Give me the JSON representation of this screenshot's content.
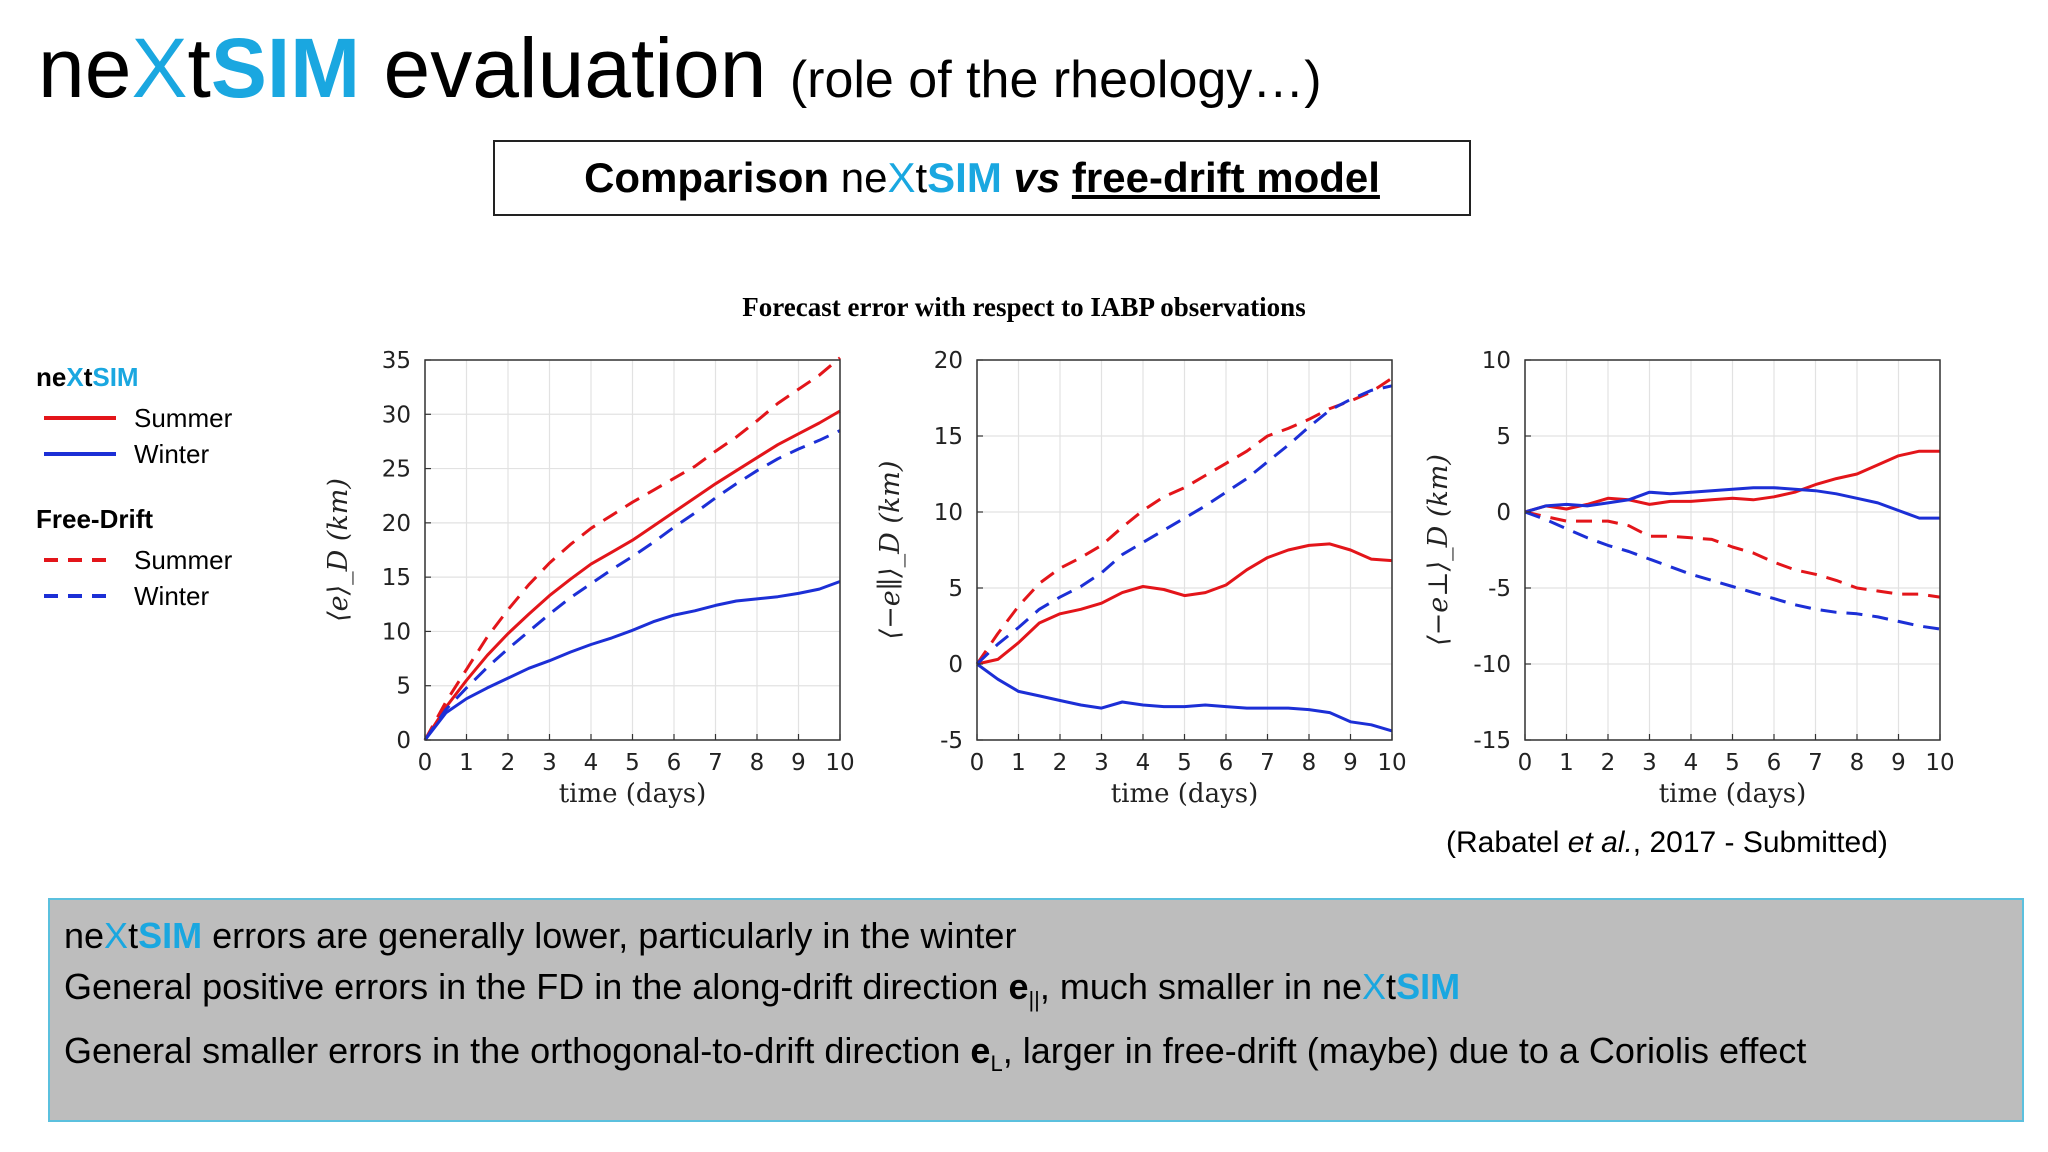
{
  "header": {
    "title_ne": "ne",
    "title_x": "X",
    "title_t": "t",
    "title_sim": "SIM",
    "title_rest": " evaluation",
    "subtitle": "(role of the rheology…)"
  },
  "comparison": {
    "prefix": "Comparison ",
    "ne": "ne",
    "x": "X",
    "t": "t",
    "sim": "SIM",
    "vs": "vs",
    "model": "free-drift model"
  },
  "figure_title": "Forecast error with respect to IABP observations",
  "legend": {
    "group1_ne": "ne",
    "group1_x": "X",
    "group1_t": "t",
    "group1_sim": "SIM",
    "group1_summer": "Summer",
    "group1_winter": "Winter",
    "group2_title": "Free-Drift",
    "group2_summer": "Summer",
    "group2_winter": "Winter"
  },
  "colors": {
    "summer": "#e3151a",
    "winter": "#1c2fd6",
    "accent": "#1aa7e0",
    "notes_bg": "#bdbdbd",
    "notes_border": "#5bc0de"
  },
  "citation": {
    "before": "(Rabatel ",
    "italic": "et al.",
    "after": ", 2017 - Submitted)"
  },
  "notes": {
    "line1_ne": "ne",
    "line1_x": "X",
    "line1_t": "t",
    "line1_sim": "SIM",
    "line1_rest": " errors are generally lower, particularly in the winter",
    "line2_text": "General positive errors in the FD in the along-drift direction ",
    "line2_bold": "e",
    "line2_sub": "||",
    "line2_rest": ", much smaller in ne",
    "line2_x": "X",
    "line2_t": "t",
    "line2_sim": "SIM",
    "line3_text": "General smaller errors in the orthogonal-to-drift direction ",
    "line3_bold": "e",
    "line3_sub": "L",
    "line3_rest": ", larger in free-drift (maybe) due to a Coriolis effect"
  },
  "chart_data": [
    {
      "type": "line",
      "title": "",
      "xlabel": "time (days)",
      "ylabel": "⟨e⟩_D (km)",
      "xlim": [
        0,
        10
      ],
      "ylim": [
        0,
        35
      ],
      "xticks": [
        0,
        1,
        2,
        3,
        4,
        5,
        6,
        7,
        8,
        9,
        10
      ],
      "yticks": [
        0,
        5,
        10,
        15,
        20,
        25,
        30,
        35
      ],
      "grid": true,
      "x": [
        0,
        0.5,
        1,
        1.5,
        2,
        2.5,
        3,
        3.5,
        4,
        4.5,
        5,
        5.5,
        6,
        6.5,
        7,
        7.5,
        8,
        8.5,
        9,
        9.5,
        10
      ],
      "series": [
        {
          "name": "neXtSIM Summer",
          "style": "solid",
          "color_key": "summer",
          "values": [
            0,
            3.0,
            5.5,
            7.8,
            9.8,
            11.6,
            13.3,
            14.8,
            16.2,
            17.3,
            18.4,
            19.7,
            21.0,
            22.3,
            23.6,
            24.8,
            26.0,
            27.2,
            28.2,
            29.2,
            30.3
          ]
        },
        {
          "name": "neXtSIM Winter",
          "style": "solid",
          "color_key": "winter",
          "values": [
            0,
            2.5,
            3.8,
            4.8,
            5.7,
            6.6,
            7.3,
            8.1,
            8.8,
            9.4,
            10.1,
            10.9,
            11.5,
            11.9,
            12.4,
            12.8,
            13.0,
            13.2,
            13.5,
            13.9,
            14.6
          ]
        },
        {
          "name": "Free-Drift Summer",
          "style": "dashed",
          "color_key": "summer",
          "values": [
            0,
            3.5,
            6.5,
            9.5,
            12.0,
            14.3,
            16.3,
            18.0,
            19.5,
            20.7,
            21.9,
            23.0,
            24.1,
            25.2,
            26.6,
            27.9,
            29.4,
            31.0,
            32.3,
            33.6,
            35.2
          ]
        },
        {
          "name": "Free-Drift Winter",
          "style": "dashed",
          "color_key": "winter",
          "values": [
            0,
            2.8,
            4.8,
            6.7,
            8.4,
            10.0,
            11.6,
            13.1,
            14.4,
            15.7,
            16.9,
            18.2,
            19.6,
            20.9,
            22.3,
            23.6,
            24.8,
            25.9,
            26.8,
            27.6,
            28.5
          ]
        }
      ]
    },
    {
      "type": "line",
      "title": "",
      "xlabel": "time (days)",
      "ylabel": "⟨−e∥⟩_D (km)",
      "xlim": [
        0,
        10
      ],
      "ylim": [
        -5,
        20
      ],
      "xticks": [
        0,
        1,
        2,
        3,
        4,
        5,
        6,
        7,
        8,
        9,
        10
      ],
      "yticks": [
        -5,
        0,
        5,
        10,
        15,
        20
      ],
      "grid": true,
      "x": [
        0,
        0.5,
        1,
        1.5,
        2,
        2.5,
        3,
        3.5,
        4,
        4.5,
        5,
        5.5,
        6,
        6.5,
        7,
        7.5,
        8,
        8.5,
        9,
        9.5,
        10
      ],
      "series": [
        {
          "name": "neXtSIM Summer",
          "style": "solid",
          "color_key": "summer",
          "values": [
            0,
            0.3,
            1.4,
            2.7,
            3.3,
            3.6,
            4.0,
            4.7,
            5.1,
            4.9,
            4.5,
            4.7,
            5.2,
            6.2,
            7.0,
            7.5,
            7.8,
            7.9,
            7.5,
            6.9,
            6.8
          ]
        },
        {
          "name": "neXtSIM Winter",
          "style": "solid",
          "color_key": "winter",
          "values": [
            0,
            -1.0,
            -1.8,
            -2.1,
            -2.4,
            -2.7,
            -2.9,
            -2.5,
            -2.7,
            -2.8,
            -2.8,
            -2.7,
            -2.8,
            -2.9,
            -2.9,
            -2.9,
            -3.0,
            -3.2,
            -3.8,
            -4.0,
            -4.4
          ]
        },
        {
          "name": "Free-Drift Summer",
          "style": "dashed",
          "color_key": "summer",
          "values": [
            0,
            2.0,
            3.8,
            5.3,
            6.3,
            7.0,
            7.8,
            9.0,
            10.1,
            11.0,
            11.6,
            12.4,
            13.2,
            14.0,
            15.0,
            15.5,
            16.1,
            16.8,
            17.3,
            17.9,
            18.8
          ]
        },
        {
          "name": "Free-Drift Winter",
          "style": "dashed",
          "color_key": "winter",
          "values": [
            0,
            1.3,
            2.4,
            3.6,
            4.4,
            5.1,
            6.0,
            7.2,
            8.0,
            8.8,
            9.6,
            10.4,
            11.3,
            12.2,
            13.3,
            14.4,
            15.6,
            16.7,
            17.4,
            18.0,
            18.3
          ]
        }
      ]
    },
    {
      "type": "line",
      "title": "",
      "xlabel": "time (days)",
      "ylabel": "⟨−e⊥⟩_D (km)",
      "xlim": [
        0,
        10
      ],
      "ylim": [
        -15,
        10
      ],
      "xticks": [
        0,
        1,
        2,
        3,
        4,
        5,
        6,
        7,
        8,
        9,
        10
      ],
      "yticks": [
        -15,
        -10,
        -5,
        0,
        5,
        10
      ],
      "grid": true,
      "x": [
        0,
        0.5,
        1,
        1.5,
        2,
        2.5,
        3,
        3.5,
        4,
        4.5,
        5,
        5.5,
        6,
        6.5,
        7,
        7.5,
        8,
        8.5,
        9,
        9.5,
        10
      ],
      "series": [
        {
          "name": "neXtSIM Summer",
          "style": "solid",
          "color_key": "summer",
          "values": [
            0,
            0.4,
            0.2,
            0.5,
            0.9,
            0.8,
            0.5,
            0.7,
            0.7,
            0.8,
            0.9,
            0.8,
            1.0,
            1.3,
            1.8,
            2.2,
            2.5,
            3.1,
            3.7,
            4.0,
            4.0
          ]
        },
        {
          "name": "neXtSIM Winter",
          "style": "solid",
          "color_key": "winter",
          "values": [
            0,
            0.4,
            0.5,
            0.4,
            0.6,
            0.8,
            1.3,
            1.2,
            1.3,
            1.4,
            1.5,
            1.6,
            1.6,
            1.5,
            1.4,
            1.2,
            0.9,
            0.6,
            0.1,
            -0.4,
            -0.4
          ]
        },
        {
          "name": "Free-Drift Summer",
          "style": "dashed",
          "color_key": "summer",
          "values": [
            0,
            -0.3,
            -0.6,
            -0.6,
            -0.6,
            -0.9,
            -1.6,
            -1.6,
            -1.7,
            -1.8,
            -2.3,
            -2.7,
            -3.3,
            -3.8,
            -4.1,
            -4.5,
            -5.0,
            -5.2,
            -5.4,
            -5.4,
            -5.6
          ]
        },
        {
          "name": "Free-Drift Winter",
          "style": "dashed",
          "color_key": "winter",
          "values": [
            0,
            -0.5,
            -1.1,
            -1.7,
            -2.2,
            -2.6,
            -3.1,
            -3.6,
            -4.1,
            -4.5,
            -4.9,
            -5.3,
            -5.7,
            -6.1,
            -6.4,
            -6.6,
            -6.7,
            -6.9,
            -7.2,
            -7.5,
            -7.7
          ]
        }
      ]
    }
  ]
}
